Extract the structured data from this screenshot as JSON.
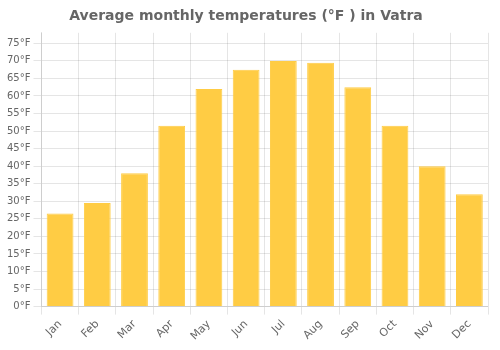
{
  "chart_data": {
    "type": "bar",
    "title": "Average monthly temperatures (°F ) in Vatra",
    "categories": [
      "Jan",
      "Feb",
      "Mar",
      "Apr",
      "May",
      "Jun",
      "Jul",
      "Aug",
      "Sep",
      "Oct",
      "Nov",
      "Dec"
    ],
    "values": [
      26.5,
      29.5,
      38,
      51.5,
      62,
      67.5,
      70,
      69.5,
      62.5,
      51.5,
      40,
      32
    ],
    "color": "#FFCC44",
    "ylim": [
      0,
      78
    ],
    "yticks": [
      {
        "value": 0,
        "label": "0°F"
      },
      {
        "value": 5,
        "label": "5°F"
      },
      {
        "value": 10,
        "label": "10°F"
      },
      {
        "value": 15,
        "label": "15°F"
      },
      {
        "value": 20,
        "label": "20°F"
      },
      {
        "value": 25,
        "label": "25°F"
      },
      {
        "value": 30,
        "label": "30°F"
      },
      {
        "value": 35,
        "label": "35°F"
      },
      {
        "value": 40,
        "label": "40°F"
      },
      {
        "value": 45,
        "label": "45°F"
      },
      {
        "value": 50,
        "label": "50°F"
      },
      {
        "value": 55,
        "label": "55°F"
      },
      {
        "value": 60,
        "label": "60°F"
      },
      {
        "value": 65,
        "label": "65°F"
      },
      {
        "value": 70,
        "label": "70°F"
      },
      {
        "value": 75,
        "label": "75°F"
      }
    ],
    "grid": true
  }
}
